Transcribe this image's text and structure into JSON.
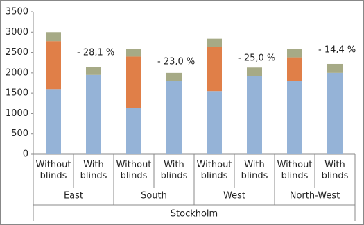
{
  "chart_data": {
    "type": "stacked_bar",
    "categories": [
      "Without blinds",
      "With blinds",
      "Without blinds",
      "With blinds",
      "Without blinds",
      "With blinds",
      "Without blinds",
      "With blinds"
    ],
    "groups": [
      "East",
      "South",
      "West",
      "North-West"
    ],
    "super_group": "Stockholm",
    "series": [
      {
        "color": "#95b3d7",
        "values": [
          1600,
          1950,
          1130,
          1800,
          1550,
          1920,
          1800,
          2000
        ]
      },
      {
        "color": "#e07f48",
        "values": [
          1180,
          0,
          1270,
          0,
          1090,
          0,
          580,
          0
        ]
      },
      {
        "color": "#a6aa86",
        "values": [
          220,
          200,
          190,
          200,
          200,
          210,
          210,
          220
        ]
      }
    ],
    "annotations": [
      "- 28,1 %",
      "- 23,0 %",
      "- 25,0 %",
      "- 14,4 %"
    ],
    "ylim": [
      0,
      3500
    ],
    "yticks": [
      0,
      500,
      1000,
      1500,
      2000,
      2500,
      3000,
      3500
    ]
  }
}
